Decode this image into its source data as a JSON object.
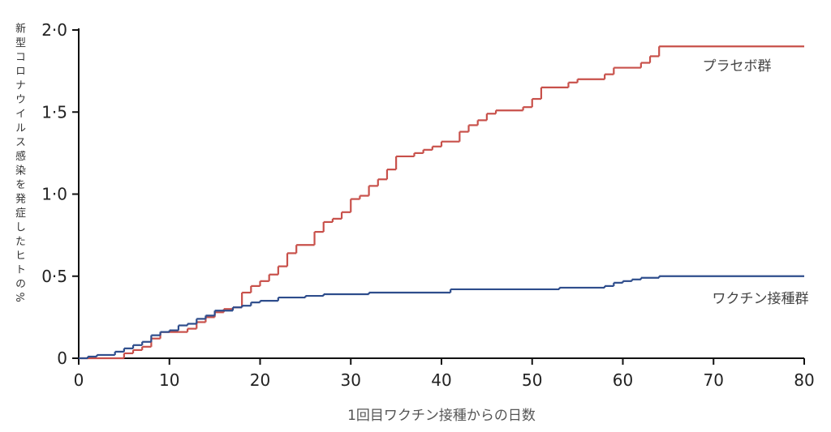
{
  "chart_data": {
    "type": "step",
    "y_label": "新型コロナウイルス感染を発症したヒトの%",
    "x_label": "1回目ワクチン接種からの日数",
    "xlim": [
      0,
      80
    ],
    "xticks": [
      0,
      10,
      20,
      30,
      40,
      50,
      60,
      70,
      80
    ],
    "ylim": [
      0,
      2.0
    ],
    "yticks": [
      {
        "value": 0,
        "label": "0"
      },
      {
        "value": 0.5,
        "label": "0·5"
      },
      {
        "value": 1.0,
        "label": "1·0"
      },
      {
        "value": 1.5,
        "label": "1·5"
      },
      {
        "value": 2.0,
        "label": "2·0"
      }
    ],
    "series": [
      {
        "name": "プラセボ群",
        "color": "#c8504a",
        "x": [
          0,
          5,
          6,
          7,
          8,
          9,
          11,
          12,
          13,
          14,
          15,
          16,
          17,
          18,
          19,
          20,
          21,
          22,
          23,
          24,
          26,
          27,
          28,
          29,
          30,
          31,
          32,
          33,
          34,
          35,
          37,
          38,
          39,
          40,
          42,
          43,
          44,
          45,
          46,
          49,
          50,
          51,
          54,
          55,
          58,
          59,
          62,
          63,
          64,
          80
        ],
        "values": [
          0,
          0.03,
          0.05,
          0.07,
          0.12,
          0.16,
          0.16,
          0.18,
          0.22,
          0.25,
          0.28,
          0.3,
          0.31,
          0.4,
          0.44,
          0.47,
          0.51,
          0.56,
          0.64,
          0.69,
          0.77,
          0.83,
          0.85,
          0.89,
          0.97,
          0.99,
          1.05,
          1.09,
          1.15,
          1.23,
          1.25,
          1.27,
          1.29,
          1.32,
          1.38,
          1.42,
          1.45,
          1.49,
          1.51,
          1.53,
          1.58,
          1.65,
          1.68,
          1.7,
          1.73,
          1.77,
          1.8,
          1.84,
          1.9,
          1.9
        ]
      },
      {
        "name": "ワクチン接種群",
        "color": "#2e4d8c",
        "x": [
          0,
          1,
          2,
          4,
          5,
          6,
          7,
          8,
          9,
          10,
          11,
          12,
          13,
          14,
          15,
          17,
          18,
          19,
          20,
          22,
          25,
          27,
          32,
          41,
          53,
          58,
          59,
          60,
          61,
          62,
          64,
          80
        ],
        "values": [
          0,
          0.01,
          0.02,
          0.04,
          0.06,
          0.08,
          0.1,
          0.14,
          0.16,
          0.17,
          0.2,
          0.21,
          0.24,
          0.26,
          0.29,
          0.31,
          0.32,
          0.34,
          0.35,
          0.37,
          0.38,
          0.39,
          0.4,
          0.42,
          0.43,
          0.44,
          0.46,
          0.47,
          0.48,
          0.49,
          0.5,
          0.5
        ]
      }
    ]
  }
}
